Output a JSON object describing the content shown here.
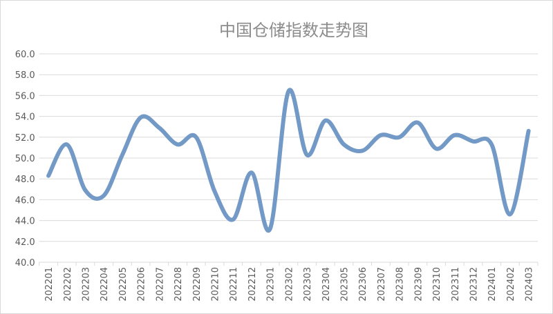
{
  "chart_data": {
    "type": "line",
    "title": "中国仓储指数走势图",
    "xlabel": "",
    "ylabel": "",
    "ylim": [
      40,
      60
    ],
    "ytick_step": 2,
    "grid": true,
    "smooth": true,
    "legend": "none",
    "colors": {
      "line": "#7399c6",
      "grid": "#d9d9d9",
      "text": "#595959",
      "title": "#8c8c8c"
    },
    "categories": [
      "202201",
      "202202",
      "202203",
      "202204",
      "202205",
      "202206",
      "202207",
      "202208",
      "202209",
      "202210",
      "202211",
      "202212",
      "202301",
      "202302",
      "202303",
      "202304",
      "202305",
      "202306",
      "202307",
      "202308",
      "202309",
      "202310",
      "202311",
      "202312",
      "202401",
      "202402",
      "202403"
    ],
    "values": [
      48.3,
      51.3,
      46.9,
      46.4,
      50.3,
      53.9,
      52.9,
      51.3,
      52.0,
      46.8,
      44.1,
      48.6,
      43.2,
      56.4,
      50.3,
      53.6,
      51.3,
      50.7,
      52.2,
      52.0,
      53.4,
      50.9,
      52.2,
      51.6,
      51.3,
      44.6,
      52.6
    ],
    "ytick_labels": [
      "40.0",
      "42.0",
      "44.0",
      "46.0",
      "48.0",
      "50.0",
      "52.0",
      "54.0",
      "56.0",
      "58.0",
      "60.0"
    ]
  }
}
